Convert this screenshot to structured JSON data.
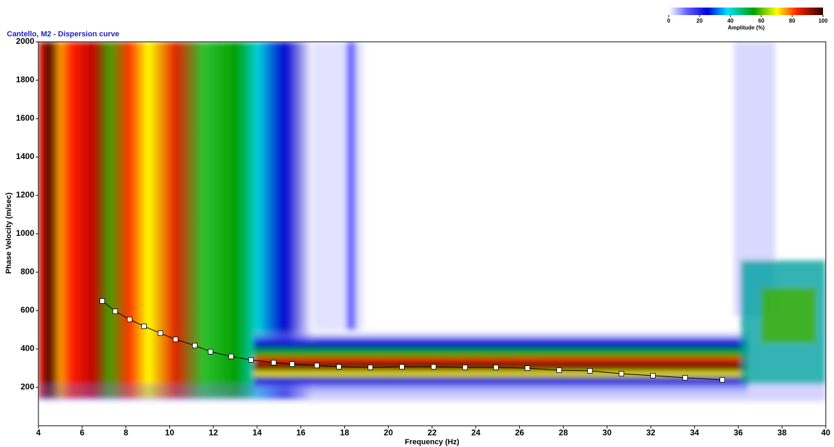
{
  "chart_data": {
    "type": "line",
    "title": "Cantello, M2 - Dispersion curve",
    "x_label": "Frequency (Hz)",
    "y_label": "Phase Velocity (m/sec)",
    "xlim": [
      4,
      40
    ],
    "xticks": [
      4,
      6,
      8,
      10,
      12,
      14,
      16,
      18,
      20,
      22,
      24,
      26,
      28,
      30,
      32,
      34,
      36,
      38,
      40
    ],
    "ylim": [
      0,
      2000
    ],
    "yticks": [
      200,
      400,
      600,
      800,
      1000,
      1200,
      1400,
      1600,
      1800,
      2000
    ],
    "series": [
      {
        "color": "#000000",
        "x": [
          6.92,
          7.51,
          8.17,
          8.83,
          9.58,
          10.27,
          11.15,
          11.87,
          12.81,
          13.72,
          14.76,
          15.6,
          16.73,
          17.74,
          19.18,
          20.62,
          22.07,
          23.51,
          24.92,
          26.36,
          27.81,
          29.22,
          30.66,
          32.1,
          33.57,
          35.27
        ],
        "values": [
          650,
          596,
          554,
          518,
          482,
          450,
          418,
          386,
          361,
          343,
          329,
          321,
          314,
          307,
          304,
          307,
          307,
          304,
          304,
          300,
          289,
          286,
          271,
          261,
          250,
          239
        ]
      }
    ],
    "colorbar": {
      "title": "Amplitude (%)",
      "lim": [
        0,
        100
      ],
      "ticks": [
        0,
        20,
        40,
        60,
        80,
        100
      ]
    }
  }
}
